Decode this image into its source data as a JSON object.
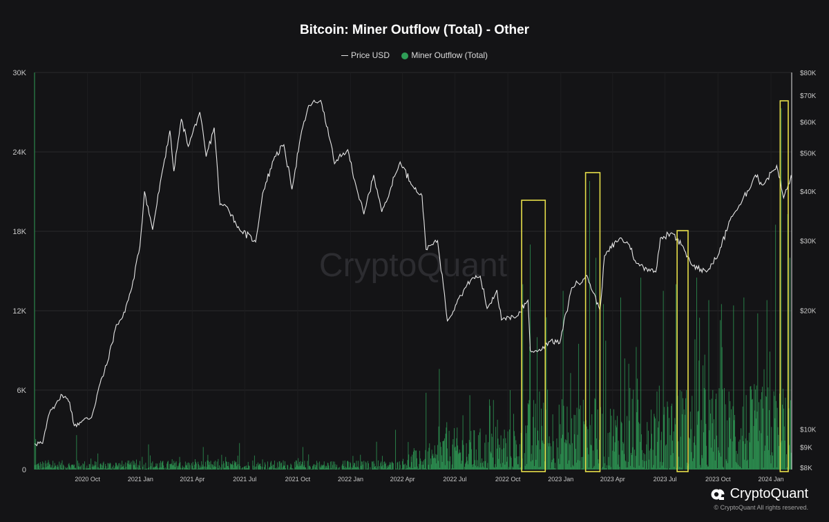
{
  "chart_data": {
    "type": "bar+line",
    "title": "Bitcoin: Miner Outflow (Total) - Other",
    "watermark": "CryptoQuant",
    "legend": {
      "placement": "top-center",
      "items": [
        "Price USD",
        "Miner Outflow (Total)"
      ]
    },
    "grid": true,
    "x_ticks": [
      "2020 Oct",
      "2021 Jan",
      "2021 Apr",
      "2021 Jul",
      "2021 Oct",
      "2022 Jan",
      "2022 Apr",
      "2022 Jul",
      "2022 Oct",
      "2023 Jan",
      "2023 Apr",
      "2023 Jul",
      "2023 Oct",
      "2024 Jan"
    ],
    "x_range": [
      "2020-07-01",
      "2024-02-06"
    ],
    "y_left": {
      "label": "Miner Outflow (Total)",
      "ticks": [
        "0",
        "6K",
        "12K",
        "18K",
        "24K",
        "30K"
      ],
      "ylim": [
        0,
        30000
      ]
    },
    "y_right": {
      "label": "Price USD",
      "scale": "log",
      "ticks": [
        "$8K",
        "$9K",
        "$10K",
        "$20K",
        "$30K",
        "$40K",
        "$50K",
        "$60K",
        "$70K",
        "$80K"
      ],
      "ylim": [
        7900,
        80000
      ]
    },
    "series": [
      {
        "name": "Price USD",
        "axis": "right",
        "color": "#e8e8e8",
        "points": [
          [
            "2020-07-01",
            9200
          ],
          [
            "2020-07-15",
            9200
          ],
          [
            "2020-07-27",
            11000
          ],
          [
            "2020-08-10",
            11800
          ],
          [
            "2020-08-18",
            12200
          ],
          [
            "2020-08-31",
            11700
          ],
          [
            "2020-09-08",
            10200
          ],
          [
            "2020-09-22",
            10500
          ],
          [
            "2020-10-08",
            10700
          ],
          [
            "2020-10-21",
            12800
          ],
          [
            "2020-11-05",
            14800
          ],
          [
            "2020-11-20",
            18400
          ],
          [
            "2020-12-01",
            19200
          ],
          [
            "2020-12-17",
            22800
          ],
          [
            "2020-12-31",
            29000
          ],
          [
            "2021-01-08",
            40000
          ],
          [
            "2021-01-22",
            32000
          ],
          [
            "2021-02-08",
            45000
          ],
          [
            "2021-02-21",
            57000
          ],
          [
            "2021-02-28",
            45000
          ],
          [
            "2021-03-13",
            61000
          ],
          [
            "2021-03-25",
            52000
          ],
          [
            "2021-04-14",
            63500
          ],
          [
            "2021-04-25",
            49000
          ],
          [
            "2021-05-09",
            58000
          ],
          [
            "2021-05-19",
            37000
          ],
          [
            "2021-06-01",
            36500
          ],
          [
            "2021-06-22",
            32000
          ],
          [
            "2021-07-20",
            29800
          ],
          [
            "2021-08-01",
            39500
          ],
          [
            "2021-08-22",
            49000
          ],
          [
            "2021-09-07",
            52500
          ],
          [
            "2021-09-21",
            40500
          ],
          [
            "2021-10-06",
            55000
          ],
          [
            "2021-10-20",
            66000
          ],
          [
            "2021-11-10",
            68000
          ],
          [
            "2021-11-26",
            54000
          ],
          [
            "2021-12-04",
            47000
          ],
          [
            "2021-12-27",
            51000
          ],
          [
            "2022-01-10",
            41500
          ],
          [
            "2022-01-24",
            35000
          ],
          [
            "2022-02-10",
            44000
          ],
          [
            "2022-02-24",
            35500
          ],
          [
            "2022-03-28",
            47500
          ],
          [
            "2022-04-20",
            41000
          ],
          [
            "2022-05-05",
            39000
          ],
          [
            "2022-05-12",
            28500
          ],
          [
            "2022-06-01",
            30000
          ],
          [
            "2022-06-13",
            22000
          ],
          [
            "2022-06-18",
            18800
          ],
          [
            "2022-07-08",
            21500
          ],
          [
            "2022-07-30",
            24000
          ],
          [
            "2022-08-14",
            24400
          ],
          [
            "2022-08-26",
            20200
          ],
          [
            "2022-09-12",
            22500
          ],
          [
            "2022-09-20",
            18900
          ],
          [
            "2022-10-15",
            19200
          ],
          [
            "2022-11-05",
            21200
          ],
          [
            "2022-11-09",
            15800
          ],
          [
            "2022-11-21",
            15700
          ],
          [
            "2022-12-15",
            16800
          ],
          [
            "2022-12-30",
            16500
          ],
          [
            "2023-01-20",
            22800
          ],
          [
            "2023-02-15",
            24500
          ],
          [
            "2023-03-10",
            20000
          ],
          [
            "2023-03-18",
            27500
          ],
          [
            "2023-04-14",
            30500
          ],
          [
            "2023-04-30",
            29300
          ],
          [
            "2023-05-12",
            26300
          ],
          [
            "2023-06-15",
            25000
          ],
          [
            "2023-06-23",
            30500
          ],
          [
            "2023-07-14",
            31300
          ],
          [
            "2023-07-31",
            29200
          ],
          [
            "2023-08-17",
            26000
          ],
          [
            "2023-09-11",
            25000
          ],
          [
            "2023-10-01",
            27500
          ],
          [
            "2023-10-24",
            34500
          ],
          [
            "2023-11-09",
            37000
          ],
          [
            "2023-12-05",
            44000
          ],
          [
            "2023-12-18",
            41500
          ],
          [
            "2024-01-03",
            45000
          ],
          [
            "2024-01-11",
            46500
          ],
          [
            "2024-01-23",
            38500
          ],
          [
            "2024-02-04",
            43000
          ],
          [
            "2024-02-06",
            43200
          ]
        ]
      },
      {
        "name": "Miner Outflow (Total)",
        "axis": "left",
        "color": "#2f9e57",
        "type": "bar",
        "start": "2020-07-01",
        "note": "daily bars, peak values read from chart",
        "peaks": [
          [
            "2020-07-03",
            2300
          ],
          [
            "2020-09-12",
            2600
          ],
          [
            "2021-01-15",
            1900
          ],
          [
            "2021-04-20",
            1700
          ],
          [
            "2021-06-22",
            2000
          ],
          [
            "2021-10-10",
            1700
          ],
          [
            "2022-02-15",
            2100
          ],
          [
            "2022-03-20",
            3000
          ],
          [
            "2022-05-12",
            5800
          ],
          [
            "2022-06-04",
            7600
          ],
          [
            "2022-07-15",
            4100
          ],
          [
            "2022-08-30",
            5300
          ],
          [
            "2022-10-05",
            6000
          ],
          [
            "2022-10-27",
            14000
          ],
          [
            "2022-11-09",
            17000
          ],
          [
            "2022-11-21",
            10000
          ],
          [
            "2022-12-07",
            11500
          ],
          [
            "2023-01-05",
            13500
          ],
          [
            "2023-02-01",
            9500
          ],
          [
            "2023-02-20",
            21800
          ],
          [
            "2023-03-03",
            16000
          ],
          [
            "2023-03-16",
            12500
          ],
          [
            "2023-04-15",
            13000
          ],
          [
            "2023-05-20",
            14500
          ],
          [
            "2023-06-28",
            13500
          ],
          [
            "2023-07-20",
            14000
          ],
          [
            "2023-08-25",
            14500
          ],
          [
            "2023-09-15",
            12800
          ],
          [
            "2023-10-07",
            12500
          ],
          [
            "2023-10-28",
            12400
          ],
          [
            "2023-11-15",
            13000
          ],
          [
            "2023-12-09",
            11800
          ],
          [
            "2023-12-25",
            12800
          ],
          [
            "2024-01-09",
            18500
          ],
          [
            "2024-01-19",
            27300
          ],
          [
            "2024-01-30",
            19300
          ],
          [
            "2024-02-03",
            16000
          ]
        ]
      }
    ],
    "highlights": [
      {
        "from": "2022-10-25",
        "to": "2022-12-05",
        "color": "#e8e04a"
      },
      {
        "from": "2023-02-13",
        "to": "2023-03-10",
        "color": "#e8e04a"
      },
      {
        "from": "2023-07-22",
        "to": "2023-08-10",
        "color": "#e8e04a"
      },
      {
        "from": "2024-01-17",
        "to": "2024-01-31",
        "color": "#e8e04a"
      }
    ]
  },
  "footer": {
    "brand": "CryptoQuant",
    "copyright": "© CryptoQuant All rights reserved."
  },
  "colors": {
    "background": "#141416",
    "grid": "#2a2a2c",
    "axis_text": "#c8c8c8",
    "price_line": "#e8e8e8",
    "bars": "#2f9e57",
    "highlight": "#e8e04a",
    "left_axis_line": "#2f9e57"
  }
}
